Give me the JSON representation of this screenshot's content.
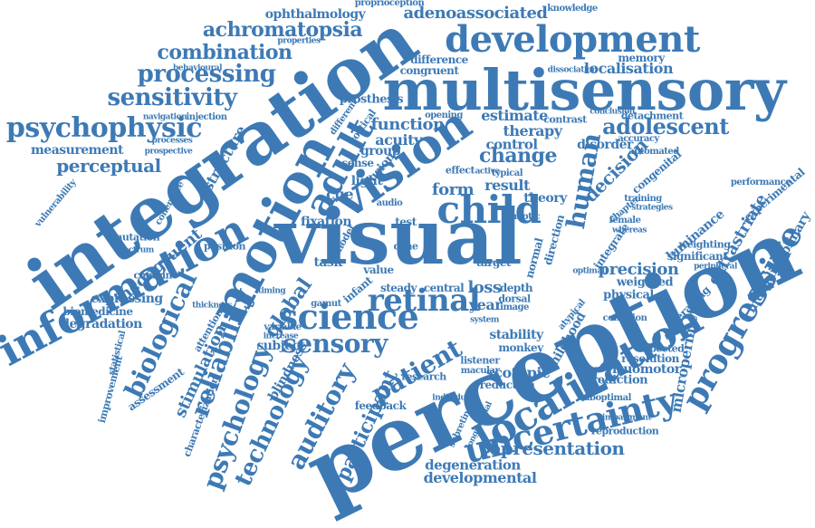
{
  "colors": {
    "word": "#3d7ab5",
    "background": "#ffffff"
  },
  "words": [
    "perception",
    "visual",
    "integration",
    "multisensory",
    "development",
    "information",
    "motion",
    "localization",
    "uncertainty",
    "child",
    "vision",
    "science",
    "sensory",
    "progressive",
    "retinal",
    "adult",
    "patient",
    "technology",
    "psychology",
    "reliability",
    "auditory",
    "biological",
    "psychophysic",
    "sensitivity",
    "processing",
    "combination",
    "achromatopsia",
    "adenoassociated",
    "ophthalmology",
    "adolescent",
    "human",
    "representation",
    "developmental",
    "degeneration",
    "participant",
    "function",
    "change",
    "estimate",
    "decision",
    "precision",
    "extrastriate",
    "microperimetry",
    "multidisciplinary",
    "scotopic",
    "visuomotor",
    "perceptual",
    "measurement",
    "stimulation",
    "global",
    "subject",
    "incongruent",
    "expressing",
    "degradation",
    "biomedicine",
    "luminance",
    "childhood",
    "experimental",
    "prediction",
    "resolution",
    "reproduction",
    "significant",
    "weighting",
    "weighted",
    "acuity",
    "therapy",
    "control",
    "form",
    "result",
    "group",
    "theory",
    "fixation",
    "cue",
    "loss",
    "year",
    "depth",
    "stability",
    "monkey",
    "listener",
    "macular",
    "reduction",
    "feedback",
    "assessment",
    "improvement",
    "characterization",
    "blindness",
    "expected",
    "averaging",
    "physical",
    "congenital",
    "disorder",
    "memory",
    "difference",
    "congruent",
    "localisation",
    "knowledge",
    "proprioception",
    "prosthesis",
    "vulnerability",
    "combine",
    "mutation",
    "position",
    "attention",
    "statistical",
    "spectrum",
    "coherence",
    "navigation",
    "injection",
    "prospective",
    "behavioural",
    "properties",
    "structure",
    "performance",
    "integrate",
    "direction",
    "normal",
    "chapter",
    "automated",
    "suboptimal",
    "impairment",
    "atypical",
    "variable",
    "increase",
    "timing",
    "thickness",
    "central",
    "steady",
    "infant",
    "gamut",
    "task",
    "light",
    "value",
    "test",
    "fusion",
    "sense",
    "different",
    "opening",
    "contrast",
    "processes",
    "cortical",
    "accuracy",
    "detachment",
    "conclusion",
    "dissociation",
    "peripheral",
    "female",
    "whereas",
    "optimal",
    "haptic",
    "strategies",
    "training",
    "condition",
    "target",
    "dorsal",
    "image",
    "system",
    "research",
    "individual",
    "subretinal",
    "longitudinal",
    "model",
    "effect",
    "active",
    "typical",
    "cone",
    "audio"
  ]
}
